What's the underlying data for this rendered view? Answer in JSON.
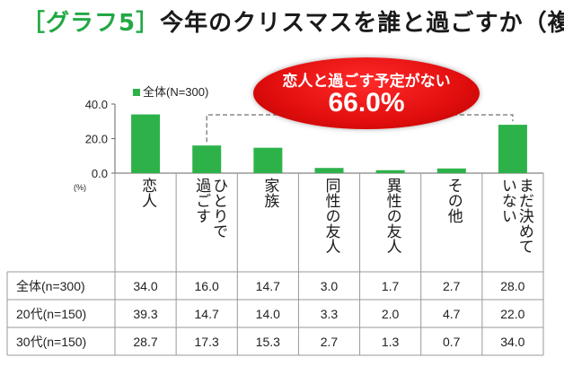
{
  "title": {
    "prefix": "［グラフ5］",
    "main": "今年のクリスマスを誰と過ごすか（複数回答）"
  },
  "callout": {
    "text": "恋人と過ごす予定がない",
    "value": "66.0%"
  },
  "colors": {
    "title_accent": "#22a845",
    "bar": "#2db24a",
    "callout": "#e10e0e",
    "grid": "#c8c8c8"
  },
  "chart_data": {
    "type": "bar",
    "unit_label": "(%)",
    "yticks": [
      "0.0",
      "20.0",
      "40.0"
    ],
    "ylim": [
      0,
      40
    ],
    "legend_position": "top-left",
    "categories": [
      "恋人",
      "ひとりで過ごす",
      "家族",
      "同性の友人",
      "異性の友人",
      "その他",
      "まだ決めていない"
    ],
    "series": [
      {
        "name": "全体(N=300)",
        "values": [
          34.0,
          16.0,
          14.7,
          3.0,
          1.7,
          2.7,
          28.0
        ]
      }
    ],
    "bracket_categories": [
      "ひとりで過ごす",
      "まだ決めていない"
    ]
  },
  "table": {
    "rows": [
      {
        "label": "全体(n=300)",
        "values": [
          "34.0",
          "16.0",
          "14.7",
          "3.0",
          "1.7",
          "2.7",
          "28.0"
        ]
      },
      {
        "label": "20代(n=150)",
        "values": [
          "39.3",
          "14.7",
          "14.0",
          "3.3",
          "2.0",
          "4.7",
          "22.0"
        ]
      },
      {
        "label": "30代(n=150)",
        "values": [
          "28.7",
          "17.3",
          "15.3",
          "2.7",
          "1.3",
          "0.7",
          "34.0"
        ]
      }
    ]
  }
}
